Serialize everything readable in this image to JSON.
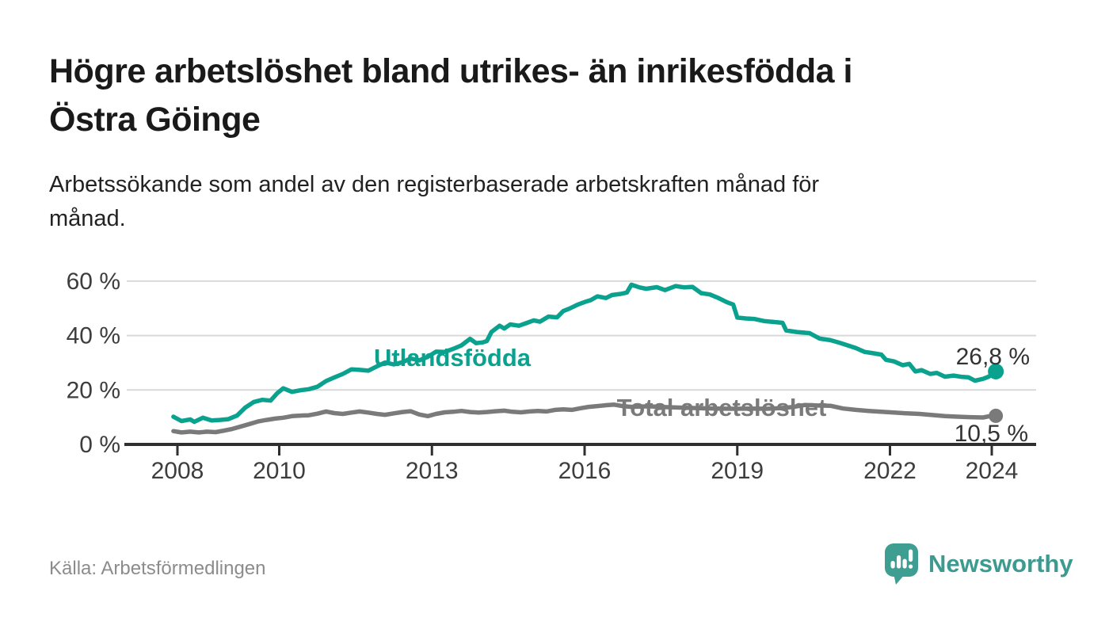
{
  "header": {
    "title_lines": [
      "Högre arbetslöshet bland utrikes- än inrikesfödda i",
      "Östra Göinge"
    ],
    "subtitle_lines": [
      "Arbetssökande som andel av den registerbaserade arbetskraften månad för",
      "månad."
    ]
  },
  "footer": {
    "source": "Källa: Arbetsförmedlingen",
    "brand": "Newsworthy",
    "brand_icon": "newsworthy-speech-bubble-bar-chart-icon"
  },
  "colors": {
    "accent_teal": "#0aa28e",
    "series_gray": "#7a7a7a",
    "logo_teal": "#3f9e92",
    "brand_text_teal": "#3d9a90",
    "grid": "#d9d9d9",
    "axis": "#2f2f2f",
    "tick_text": "#3d3d3d",
    "value_text": "#333333",
    "title_text": "#1a1a1a",
    "source_text": "#8c8c8c"
  },
  "chart_data": {
    "type": "line",
    "title": "Högre arbetslöshet bland utrikes- än inrikesfödda i Östra Göinge",
    "subtitle": "Arbetssökande som andel av den registerbaserade arbetskraften månad för månad.",
    "xlabel": "",
    "ylabel": "",
    "unit": "%",
    "grid": "horizontal-only",
    "legend": "inline-labels",
    "x_axis": {
      "ticks": [
        2008,
        2010,
        2013,
        2016,
        2019,
        2022,
        2024
      ],
      "range": [
        2007.6,
        2024.9
      ]
    },
    "y_axis": {
      "tick_values": [
        0,
        20,
        40,
        60
      ],
      "tick_labels": [
        "0 %",
        "20 %",
        "40 %",
        "60 %"
      ],
      "range": [
        0,
        63
      ]
    },
    "series": [
      {
        "name": "Utlandsfödda",
        "color": "#0aa28e",
        "end_value": 26.8,
        "end_label": "26,8 %",
        "points": [
          [
            2007.92,
            10.2
          ],
          [
            2008.08,
            8.6
          ],
          [
            2008.25,
            9.2
          ],
          [
            2008.33,
            8.3
          ],
          [
            2008.5,
            9.8
          ],
          [
            2008.67,
            8.8
          ],
          [
            2008.83,
            9.0
          ],
          [
            2009.0,
            9.3
          ],
          [
            2009.17,
            10.6
          ],
          [
            2009.33,
            13.5
          ],
          [
            2009.5,
            15.6
          ],
          [
            2009.67,
            16.4
          ],
          [
            2009.83,
            16.1
          ],
          [
            2009.96,
            18.8
          ],
          [
            2010.08,
            20.6
          ],
          [
            2010.25,
            19.3
          ],
          [
            2010.42,
            19.9
          ],
          [
            2010.58,
            20.3
          ],
          [
            2010.75,
            21.2
          ],
          [
            2010.92,
            23.3
          ],
          [
            2011.08,
            24.6
          ],
          [
            2011.25,
            25.9
          ],
          [
            2011.42,
            27.6
          ],
          [
            2011.58,
            27.4
          ],
          [
            2011.75,
            27.1
          ],
          [
            2011.92,
            28.7
          ],
          [
            2012.08,
            30.1
          ],
          [
            2012.25,
            29.4
          ],
          [
            2012.42,
            30.2
          ],
          [
            2012.58,
            31.6
          ],
          [
            2012.75,
            30.9
          ],
          [
            2012.92,
            32.2
          ],
          [
            2013.08,
            34.1
          ],
          [
            2013.25,
            34.0
          ],
          [
            2013.42,
            35.1
          ],
          [
            2013.58,
            36.4
          ],
          [
            2013.75,
            38.8
          ],
          [
            2013.87,
            37.2
          ],
          [
            2014.0,
            37.5
          ],
          [
            2014.08,
            38.0
          ],
          [
            2014.17,
            41.3
          ],
          [
            2014.33,
            43.6
          ],
          [
            2014.42,
            42.6
          ],
          [
            2014.54,
            44.1
          ],
          [
            2014.71,
            43.6
          ],
          [
            2014.87,
            44.7
          ],
          [
            2015.0,
            45.6
          ],
          [
            2015.12,
            45.1
          ],
          [
            2015.29,
            47.0
          ],
          [
            2015.46,
            46.7
          ],
          [
            2015.58,
            49.0
          ],
          [
            2015.71,
            50.0
          ],
          [
            2015.87,
            51.4
          ],
          [
            2016.0,
            52.3
          ],
          [
            2016.12,
            53.0
          ],
          [
            2016.25,
            54.4
          ],
          [
            2016.42,
            53.8
          ],
          [
            2016.54,
            54.9
          ],
          [
            2016.71,
            55.3
          ],
          [
            2016.83,
            55.8
          ],
          [
            2016.92,
            58.7
          ],
          [
            2017.08,
            57.7
          ],
          [
            2017.21,
            57.2
          ],
          [
            2017.42,
            57.8
          ],
          [
            2017.58,
            56.7
          ],
          [
            2017.79,
            58.2
          ],
          [
            2017.96,
            57.7
          ],
          [
            2018.12,
            57.9
          ],
          [
            2018.29,
            55.6
          ],
          [
            2018.46,
            55.1
          ],
          [
            2018.62,
            53.9
          ],
          [
            2018.79,
            52.3
          ],
          [
            2018.92,
            51.4
          ],
          [
            2019.0,
            46.6
          ],
          [
            2019.17,
            46.3
          ],
          [
            2019.33,
            46.1
          ],
          [
            2019.54,
            45.3
          ],
          [
            2019.71,
            45.0
          ],
          [
            2019.89,
            44.7
          ],
          [
            2019.96,
            41.9
          ],
          [
            2020.17,
            41.3
          ],
          [
            2020.42,
            40.9
          ],
          [
            2020.62,
            38.9
          ],
          [
            2020.83,
            38.3
          ],
          [
            2021.0,
            37.4
          ],
          [
            2021.17,
            36.4
          ],
          [
            2021.33,
            35.4
          ],
          [
            2021.5,
            34.0
          ],
          [
            2021.67,
            33.5
          ],
          [
            2021.83,
            33.0
          ],
          [
            2021.92,
            31.1
          ],
          [
            2022.08,
            30.5
          ],
          [
            2022.25,
            29.1
          ],
          [
            2022.38,
            29.6
          ],
          [
            2022.5,
            26.8
          ],
          [
            2022.62,
            27.3
          ],
          [
            2022.79,
            25.9
          ],
          [
            2022.92,
            26.3
          ],
          [
            2023.08,
            24.9
          ],
          [
            2023.25,
            25.3
          ],
          [
            2023.42,
            24.8
          ],
          [
            2023.54,
            24.7
          ],
          [
            2023.67,
            23.4
          ],
          [
            2023.83,
            24.1
          ],
          [
            2023.94,
            24.9
          ],
          [
            2024.08,
            26.8
          ]
        ]
      },
      {
        "name": "Total arbetslöshet",
        "color": "#7a7a7a",
        "end_value": 10.5,
        "end_label": "10,5 %",
        "points": [
          [
            2007.92,
            4.9
          ],
          [
            2008.08,
            4.4
          ],
          [
            2008.25,
            4.7
          ],
          [
            2008.42,
            4.4
          ],
          [
            2008.58,
            4.7
          ],
          [
            2008.75,
            4.5
          ],
          [
            2008.92,
            5.1
          ],
          [
            2009.08,
            5.7
          ],
          [
            2009.25,
            6.6
          ],
          [
            2009.42,
            7.5
          ],
          [
            2009.58,
            8.4
          ],
          [
            2009.75,
            9.0
          ],
          [
            2009.92,
            9.5
          ],
          [
            2010.08,
            9.8
          ],
          [
            2010.25,
            10.4
          ],
          [
            2010.42,
            10.6
          ],
          [
            2010.58,
            10.7
          ],
          [
            2010.75,
            11.3
          ],
          [
            2010.92,
            12.1
          ],
          [
            2011.08,
            11.5
          ],
          [
            2011.25,
            11.2
          ],
          [
            2011.42,
            11.7
          ],
          [
            2011.58,
            12.1
          ],
          [
            2011.75,
            11.7
          ],
          [
            2011.92,
            11.2
          ],
          [
            2012.08,
            10.9
          ],
          [
            2012.25,
            11.4
          ],
          [
            2012.42,
            11.9
          ],
          [
            2012.58,
            12.2
          ],
          [
            2012.75,
            11.0
          ],
          [
            2012.92,
            10.4
          ],
          [
            2013.08,
            11.2
          ],
          [
            2013.25,
            11.8
          ],
          [
            2013.42,
            12.0
          ],
          [
            2013.58,
            12.3
          ],
          [
            2013.75,
            11.9
          ],
          [
            2013.92,
            11.7
          ],
          [
            2014.08,
            11.9
          ],
          [
            2014.25,
            12.2
          ],
          [
            2014.42,
            12.4
          ],
          [
            2014.58,
            12.0
          ],
          [
            2014.75,
            11.8
          ],
          [
            2014.92,
            12.1
          ],
          [
            2015.08,
            12.3
          ],
          [
            2015.25,
            12.1
          ],
          [
            2015.42,
            12.7
          ],
          [
            2015.58,
            12.9
          ],
          [
            2015.75,
            12.7
          ],
          [
            2015.92,
            13.3
          ],
          [
            2016.08,
            13.8
          ],
          [
            2016.25,
            14.1
          ],
          [
            2016.42,
            14.4
          ],
          [
            2016.58,
            14.6
          ],
          [
            2016.75,
            14.1
          ],
          [
            2016.92,
            13.8
          ],
          [
            2017.25,
            14.0
          ],
          [
            2017.58,
            13.7
          ],
          [
            2017.92,
            13.5
          ],
          [
            2018.25,
            13.3
          ],
          [
            2018.58,
            13.2
          ],
          [
            2018.92,
            13.1
          ],
          [
            2019.25,
            13.2
          ],
          [
            2019.58,
            13.1
          ],
          [
            2019.83,
            13.3
          ],
          [
            2020.08,
            13.7
          ],
          [
            2020.33,
            14.5
          ],
          [
            2020.58,
            14.3
          ],
          [
            2020.83,
            14.2
          ],
          [
            2021.08,
            13.2
          ],
          [
            2021.33,
            12.7
          ],
          [
            2021.58,
            12.3
          ],
          [
            2021.83,
            12.0
          ],
          [
            2022.08,
            11.7
          ],
          [
            2022.33,
            11.4
          ],
          [
            2022.58,
            11.2
          ],
          [
            2022.83,
            10.8
          ],
          [
            2023.08,
            10.4
          ],
          [
            2023.33,
            10.2
          ],
          [
            2023.58,
            10.0
          ],
          [
            2023.83,
            9.9
          ],
          [
            2023.94,
            10.3
          ],
          [
            2024.08,
            10.5
          ]
        ]
      }
    ]
  }
}
